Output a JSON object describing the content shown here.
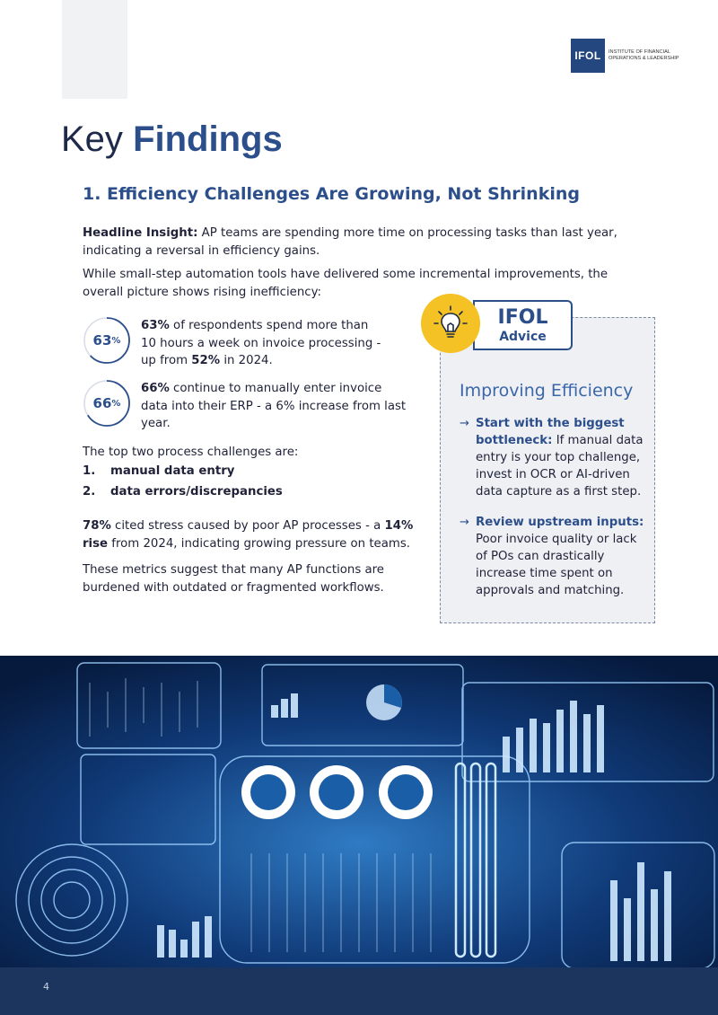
{
  "brand": {
    "logo_text": "IFOL",
    "logo_subtitle": "INSTITUTE OF FINANCIAL OPERATIONS & LEADERSHIP"
  },
  "page": {
    "title_light": "Key",
    "title_bold": "Findings",
    "section_heading": "1. Efficiency Challenges Are Growing, Not Shrinking",
    "headline_label": "Headline Insight:",
    "headline_text": " AP teams are spending more time on processing tasks than last year, indicating a reversal in efficiency gains.",
    "intro_text": "While small-step automation tools have delivered some incremental improvements, the overall picture shows rising inefficiency:",
    "stats": [
      {
        "ring_value": "63",
        "ring_unit": "%",
        "fill": 0.63,
        "bold1": "63%",
        "text1": " of respondents spend more than 10 hours a week on invoice processing - up from ",
        "bold2": "52%",
        "text2": " in 2024."
      },
      {
        "ring_value": "66",
        "ring_unit": "%",
        "fill": 0.66,
        "bold1": "66%",
        "text1": " continue to manually enter invoice data into their ERP - a 6% increase from last year."
      }
    ],
    "challenges_intro": "The top two process challenges are:",
    "challenges": [
      {
        "num": "1.",
        "label": "manual data entry"
      },
      {
        "num": "2.",
        "label": "data errors/discrepancies"
      }
    ],
    "stress_bold1": "78%",
    "stress_text1": " cited stress caused by poor AP processes - a ",
    "stress_bold2": "14% rise",
    "stress_text2": " from 2024, indicating growing pressure on teams.",
    "conclusion": "These metrics suggest that many AP functions are burdened with outdated or fragmented workflows."
  },
  "advice": {
    "tag_line1": "IFOL",
    "tag_line2": "Advice",
    "title": "Improving Efficiency",
    "tips": [
      {
        "bold": "Start with the biggest bottleneck:",
        "text": " If manual data entry is your top challenge, invest in OCR or AI-driven data capture as a first step."
      },
      {
        "bold": "Review upstream inputs:",
        "text": " Poor invoice quality or lack of POs can drastically increase time spent on approvals and matching."
      }
    ]
  },
  "footer": {
    "page_number": "4"
  },
  "colors": {
    "brand_blue": "#2c4f8c",
    "accent_yellow": "#f4c224",
    "footer_navy": "#1c355e"
  }
}
